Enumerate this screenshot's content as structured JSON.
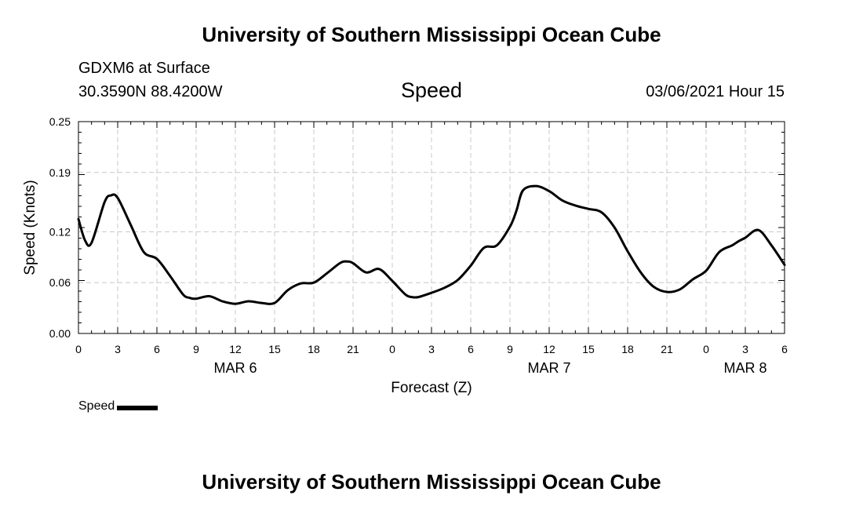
{
  "header": {
    "title": "University of Southern Mississippi Ocean Cube",
    "station": "GDXM6 at Surface",
    "coordinates": "30.3590N 88.4200W",
    "heading": "Speed",
    "run_time": "03/06/2021 Hour 15"
  },
  "footer": {
    "title": "University of Southern Mississippi Ocean Cube"
  },
  "legend": {
    "label": "Speed"
  },
  "colors": {
    "line": "#000000",
    "grid": "#c8c8c8",
    "axis": "#000000"
  },
  "chart_data": {
    "type": "line",
    "title": "Speed",
    "xlabel": "Forecast (Z)",
    "ylabel": "Speed (Knots)",
    "xlim": [
      0,
      54
    ],
    "ylim": [
      0,
      0.25
    ],
    "y_ticks": [
      0.0,
      0.06,
      0.12,
      0.19,
      0.25
    ],
    "y_tick_labels": [
      "0.00",
      "0.06",
      "0.12",
      "0.19",
      "0.25"
    ],
    "x_ticks": [
      0,
      3,
      6,
      9,
      12,
      15,
      18,
      21,
      24,
      27,
      30,
      33,
      36,
      39,
      42,
      45,
      48,
      51,
      54
    ],
    "x_tick_labels": [
      "0",
      "3",
      "6",
      "9",
      "12",
      "15",
      "18",
      "21",
      "0",
      "3",
      "6",
      "9",
      "12",
      "15",
      "18",
      "21",
      "0",
      "3",
      "6"
    ],
    "date_labels": [
      {
        "label": "MAR 6",
        "x": 12
      },
      {
        "label": "MAR 7",
        "x": 36
      },
      {
        "label": "MAR 8",
        "x": 51
      }
    ],
    "grid": true,
    "series": [
      {
        "name": "Speed",
        "x": [
          0,
          0.5,
          1,
          2,
          2.5,
          3,
          4,
          5,
          6,
          7,
          8,
          8.5,
          9,
          10,
          11,
          12,
          13,
          14,
          15,
          16,
          17,
          18,
          19,
          20,
          20.5,
          21,
          22,
          23,
          24,
          25,
          25.5,
          26,
          27,
          28,
          29,
          30,
          31,
          32,
          33,
          33.5,
          34,
          35,
          36,
          37,
          38,
          39,
          40,
          41,
          42,
          43,
          44,
          45,
          46,
          47,
          48,
          49,
          50,
          50.5,
          51,
          52,
          53,
          54
        ],
        "values": [
          0.135,
          0.11,
          0.107,
          0.155,
          0.163,
          0.16,
          0.128,
          0.096,
          0.088,
          0.068,
          0.046,
          0.042,
          0.041,
          0.044,
          0.038,
          0.035,
          0.038,
          0.036,
          0.036,
          0.051,
          0.059,
          0.06,
          0.071,
          0.083,
          0.085,
          0.083,
          0.072,
          0.076,
          0.062,
          0.046,
          0.043,
          0.043,
          0.048,
          0.054,
          0.063,
          0.08,
          0.101,
          0.104,
          0.126,
          0.145,
          0.169,
          0.174,
          0.168,
          0.157,
          0.151,
          0.147,
          0.143,
          0.125,
          0.097,
          0.072,
          0.055,
          0.049,
          0.052,
          0.064,
          0.074,
          0.096,
          0.104,
          0.109,
          0.113,
          0.122,
          0.104,
          0.081
        ]
      }
    ]
  }
}
